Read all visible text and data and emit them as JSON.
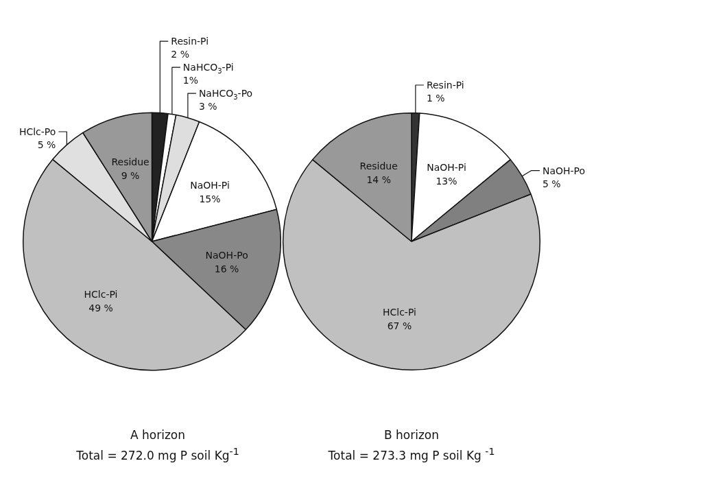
{
  "chart_data": [
    {
      "type": "pie",
      "title": "A horizon",
      "subtitle": "Total = 272.0 mg P soil Kg$^{-1}$",
      "categories": [
        "Resin-Pi",
        "NaHCO$_{3}$-Pi",
        "NaHCO$_{3}$-Po",
        "NaOH-Pi",
        "NaOH-Po",
        "HClc-Pi",
        "HClc-Po",
        "Residue"
      ],
      "values": [
        2,
        1,
        3,
        15,
        16,
        49,
        5,
        9
      ],
      "value_labels": [
        "2 %",
        "1%",
        "3 %",
        "15%",
        "16 %",
        "49 %",
        "5 %",
        "9 %"
      ],
      "colors": [
        "#222222",
        "#ffffff",
        "#dedede",
        "#ffffff",
        "#888888",
        "#c0c0c0",
        "#e0e0e0",
        "#999999"
      ]
    },
    {
      "type": "pie",
      "title": "B horizon",
      "subtitle": "Total = 273.3 mg P soil Kg $^{-1}$",
      "categories": [
        "Resin-Pi",
        "NaOH-Pi",
        "NaOH-Po",
        "HClc-Pi",
        "Residue"
      ],
      "values": [
        1,
        13,
        5,
        67,
        14
      ],
      "value_labels": [
        "1 %",
        "13%",
        "5 %",
        "67 %",
        "14 %"
      ],
      "colors": [
        "#333333",
        "#ffffff",
        "#808080",
        "#c0c0c0",
        "#999999"
      ]
    }
  ]
}
